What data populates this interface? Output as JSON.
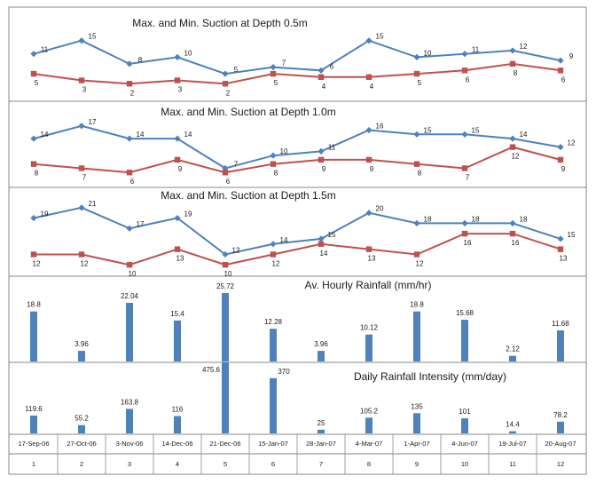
{
  "chart_data": [
    {
      "type": "line",
      "title": "Max. and Min. Suction at Depth 0.5m",
      "x": [
        1,
        2,
        3,
        4,
        5,
        6,
        7,
        8,
        9,
        10,
        11,
        12
      ],
      "series": [
        {
          "values": [
            11,
            15,
            8,
            10,
            5,
            7,
            6,
            15,
            10,
            11,
            12,
            9
          ],
          "color": "#4F81BD"
        },
        {
          "values": [
            5,
            3,
            2,
            3,
            2,
            5,
            4,
            4,
            5,
            6,
            8,
            6
          ],
          "color": "#C0504D"
        }
      ]
    },
    {
      "type": "line",
      "title": "Max. and Min. Suction at Depth 1.0m",
      "x": [
        1,
        2,
        3,
        4,
        5,
        6,
        7,
        8,
        9,
        10,
        11,
        12
      ],
      "series": [
        {
          "values": [
            14,
            17,
            14,
            14,
            7,
            10,
            11,
            16,
            15,
            15,
            14,
            12
          ],
          "color": "#4F81BD"
        },
        {
          "values": [
            8,
            7,
            6,
            9,
            6,
            8,
            9,
            9,
            8,
            7,
            12,
            9
          ],
          "color": "#C0504D"
        }
      ]
    },
    {
      "type": "line",
      "title": "Max. and Min. Suction at Depth 1.5m",
      "x": [
        1,
        2,
        3,
        4,
        5,
        6,
        7,
        8,
        9,
        10,
        11,
        12
      ],
      "series": [
        {
          "values": [
            19,
            21,
            17,
            19,
            12,
            14,
            15,
            20,
            18,
            18,
            18,
            15
          ],
          "color": "#4F81BD"
        },
        {
          "values": [
            12,
            12,
            10,
            13,
            10,
            12,
            14,
            13,
            12,
            16,
            16,
            13
          ],
          "color": "#C0504D"
        }
      ]
    },
    {
      "type": "bar",
      "title": "Av. Hourly Rainfall (mm/hr)",
      "values": [
        18.8,
        3.96,
        22.04,
        15.4,
        25.72,
        12.28,
        3.96,
        10.12,
        18.8,
        15.68,
        2.12,
        11.68
      ],
      "labels": [
        "18.8",
        "3.96",
        "22.04",
        "15.4",
        "25.72",
        "12.28",
        "3.96",
        "10.12",
        "18.8",
        "15.68",
        "2.12",
        "11.68"
      ],
      "color": "#4F81BD"
    },
    {
      "type": "bar",
      "title": "Daily Rainfall Intensity (mm/day)",
      "values": [
        119.6,
        55.2,
        163.8,
        116,
        475.6,
        370,
        25,
        105.2,
        135,
        101,
        14.4,
        78.2
      ],
      "labels": [
        "119.6",
        "55.2",
        "163.8",
        "116",
        "475.6",
        "370",
        "25",
        "105.2",
        "135",
        "101",
        "14.4",
        "78.2"
      ],
      "color": "#4F81BD",
      "categories": [
        "17-Sep-06",
        "27-Oct-06",
        "3-Nov-06",
        "14-Dec-06",
        "21-Dec-06",
        "15-Jan-07",
        "28-Jan-07",
        "4-Mar-07",
        "1-Apr-07",
        "4-Jun-07",
        "19-Jul-07",
        "20-Aug-07"
      ],
      "index_labels": [
        "1",
        "2",
        "3",
        "4",
        "5",
        "6",
        "7",
        "8",
        "9",
        "10",
        "11",
        "12"
      ]
    }
  ]
}
